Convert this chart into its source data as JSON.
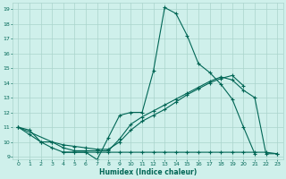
{
  "xlabel": "Humidex (Indice chaleur)",
  "bg_color": "#cff0eb",
  "grid_color": "#aad4cc",
  "line_color": "#006655",
  "xlim": [
    -0.5,
    23.5
  ],
  "ylim": [
    8.8,
    19.4
  ],
  "yticks": [
    9,
    10,
    11,
    12,
    13,
    14,
    15,
    16,
    17,
    18,
    19
  ],
  "xticks": [
    0,
    1,
    2,
    3,
    4,
    5,
    6,
    7,
    8,
    9,
    10,
    11,
    12,
    13,
    14,
    15,
    16,
    17,
    18,
    19,
    20,
    21,
    22,
    23
  ],
  "series1_x": [
    0,
    1,
    2,
    3,
    4,
    5,
    6,
    7,
    8,
    9,
    10,
    11,
    12,
    13,
    14,
    15,
    16,
    17,
    18,
    19,
    20,
    21
  ],
  "series1_y": [
    11.0,
    10.8,
    10.0,
    9.6,
    9.3,
    9.3,
    9.3,
    8.8,
    10.3,
    11.8,
    12.0,
    12.0,
    14.8,
    19.1,
    18.7,
    17.2,
    15.3,
    14.7,
    13.9,
    12.9,
    11.0,
    9.2
  ],
  "series2_x": [
    0,
    1,
    2,
    3,
    4,
    5,
    6,
    7,
    8,
    9,
    10,
    11,
    12,
    13,
    14,
    15,
    16,
    17,
    18,
    19,
    20
  ],
  "series2_y": [
    11.0,
    10.5,
    10.0,
    10.0,
    9.8,
    9.7,
    9.6,
    9.5,
    9.5,
    10.0,
    10.8,
    11.4,
    11.8,
    12.2,
    12.7,
    13.2,
    13.6,
    14.0,
    14.3,
    14.5,
    13.8
  ],
  "series3_x": [
    0,
    3,
    4,
    5,
    6,
    7,
    8,
    9,
    10,
    11,
    12,
    13,
    14,
    15,
    16,
    17,
    18,
    19,
    20,
    21,
    22,
    23
  ],
  "series3_y": [
    11.0,
    10.0,
    9.6,
    9.4,
    9.4,
    9.4,
    9.4,
    10.2,
    11.2,
    11.7,
    12.1,
    12.5,
    12.9,
    13.3,
    13.7,
    14.1,
    14.4,
    14.2,
    13.5,
    13.0,
    9.2,
    9.2
  ],
  "series4_x": [
    4,
    5,
    6,
    7,
    8,
    9,
    10,
    11,
    12,
    13,
    14,
    15,
    16,
    17,
    18,
    19,
    20,
    21,
    22,
    23
  ],
  "series4_y": [
    9.3,
    9.3,
    9.3,
    9.3,
    9.3,
    9.3,
    9.3,
    9.3,
    9.3,
    9.3,
    9.3,
    9.3,
    9.3,
    9.3,
    9.3,
    9.3,
    9.3,
    9.3,
    9.3,
    9.2
  ]
}
